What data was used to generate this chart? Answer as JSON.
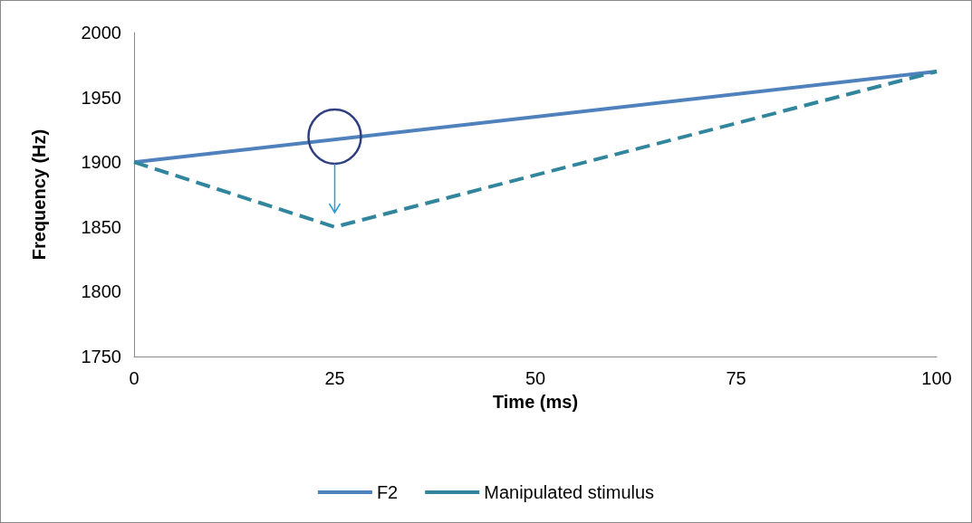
{
  "chart_data": {
    "type": "line",
    "xlabel": "Time (ms)",
    "ylabel": "Frequency (Hz)",
    "xlim": [
      0,
      100
    ],
    "xticks": [
      0,
      25,
      50,
      75,
      100
    ],
    "ylim": [
      1750,
      2000
    ],
    "yticks": [
      1750,
      1800,
      1850,
      1900,
      1950,
      2000
    ],
    "grid": false,
    "legend": "bottom",
    "marker": "none",
    "series": [
      {
        "name": "F2",
        "color": "#4f81bd",
        "x": [
          0,
          100
        ],
        "values": [
          1900,
          1970
        ],
        "line_style": "solid"
      },
      {
        "name": "Manipulated stimulus",
        "color": "#31859c",
        "x": [
          0,
          25,
          100
        ],
        "values": [
          1900,
          1850,
          1970
        ],
        "line_style": "dashed"
      }
    ]
  }
}
